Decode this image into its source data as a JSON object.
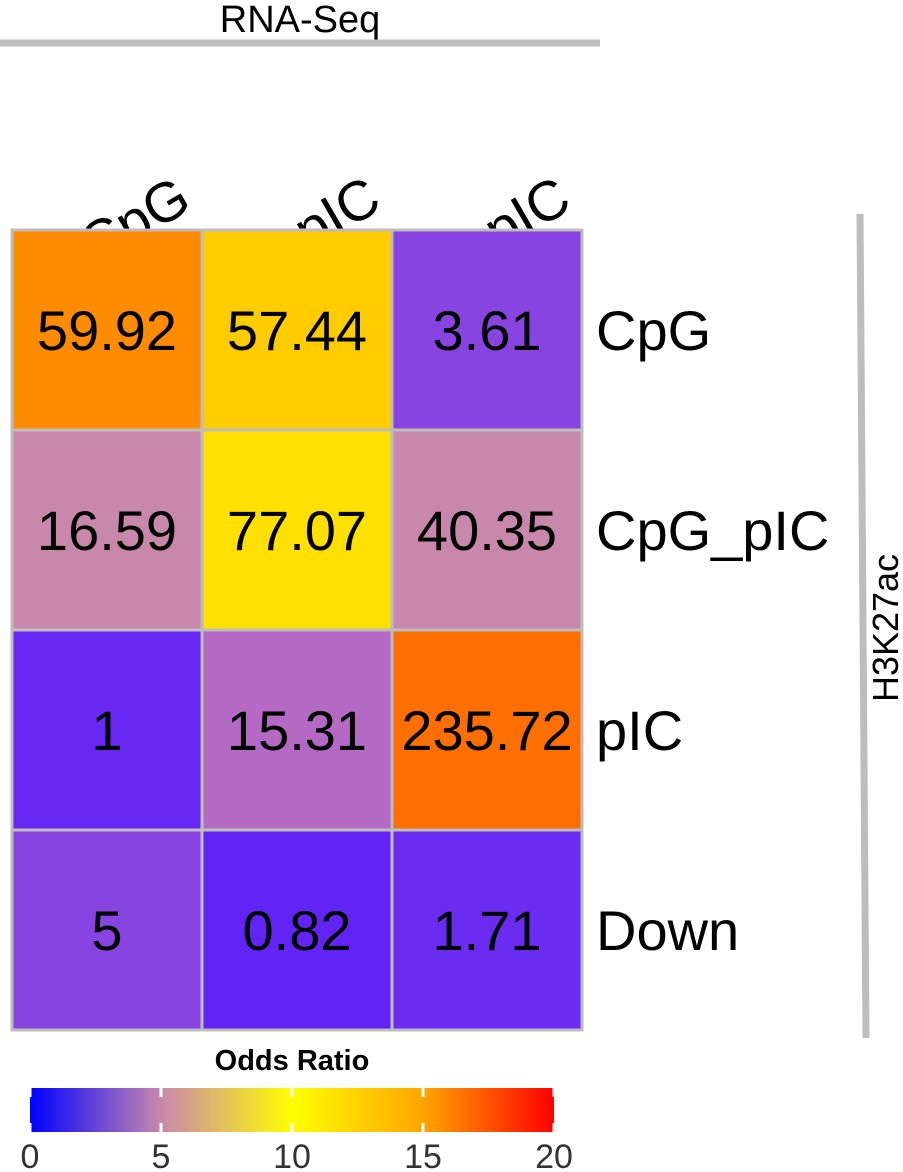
{
  "chart_data": {
    "type": "heatmap",
    "column_group_label": "RNA-Seq",
    "row_group_label": "H3K27ac",
    "columns": [
      "CpG",
      "CpG_pIC",
      "pIC"
    ],
    "rows": [
      "CpG",
      "CpG_pIC",
      "pIC",
      "Down"
    ],
    "values": [
      [
        59.92,
        57.44,
        3.61
      ],
      [
        16.59,
        77.07,
        40.35
      ],
      [
        1,
        15.31,
        235.72
      ],
      [
        5,
        0.82,
        1.71
      ]
    ],
    "cell_labels": [
      [
        "59.92",
        "57.44",
        "3.61"
      ],
      [
        "16.59",
        "77.07",
        "40.35"
      ],
      [
        "1",
        "15.31",
        "235.72"
      ],
      [
        "5",
        "0.82",
        "1.71"
      ]
    ],
    "cell_colors": [
      [
        "#ff8c00",
        "#ffcc00",
        "#8844e0"
      ],
      [
        "#c888ac",
        "#ffe000",
        "#c888ac"
      ],
      [
        "#6628f2",
        "#b46ac4",
        "#ff6e00"
      ],
      [
        "#8844e0",
        "#6224f4",
        "#6a2cf0"
      ]
    ],
    "legend": {
      "title": "Odds Ratio",
      "range": [
        0,
        20
      ],
      "ticks": [
        0,
        5,
        10,
        15,
        20
      ],
      "tick_labels": [
        "0",
        "5",
        "10",
        "15",
        "20"
      ],
      "color_stops": [
        {
          "value": 0,
          "color": "#0000ff"
        },
        {
          "value": 5,
          "color": "#c888ac"
        },
        {
          "value": 10,
          "color": "#ffff00"
        },
        {
          "value": 15,
          "color": "#ffa500"
        },
        {
          "value": 20,
          "color": "#ff0000"
        }
      ]
    },
    "grid_color": "#bdbdbd"
  }
}
